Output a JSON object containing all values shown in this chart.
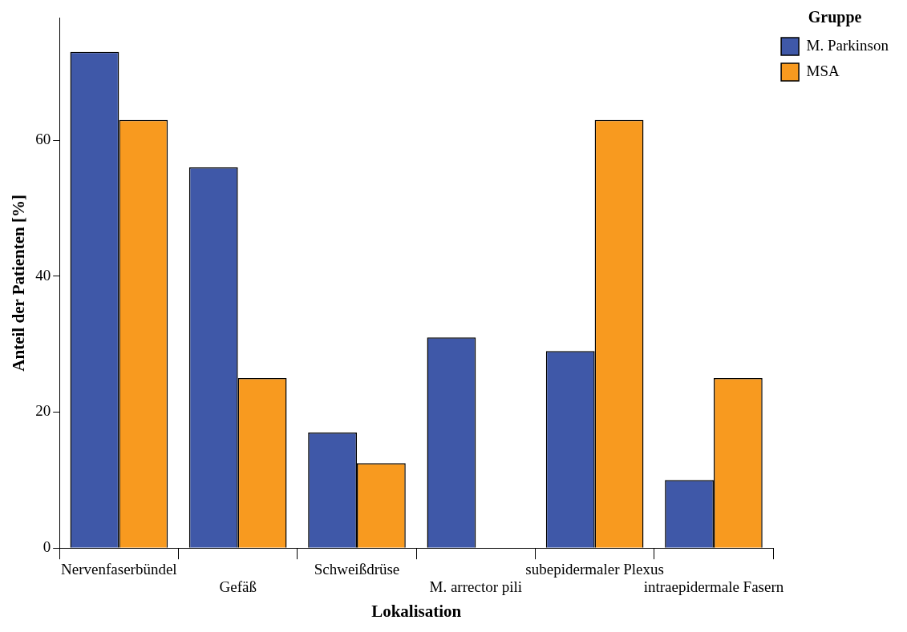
{
  "chart_data": {
    "type": "bar",
    "xlabel": "Lokalisation",
    "ylabel": "Anteil der Patienten [%]",
    "legend_title": "Gruppe",
    "categories": [
      "Nervenfaserbündel",
      "Gefäß",
      "Schweißdrüse",
      "M. arrector pili",
      "subepidermaler Plexus",
      "intraepidermale Fasern"
    ],
    "series": [
      {
        "name": "M. Parkinson",
        "color": "#3f58a8",
        "values": [
          73,
          56,
          17,
          31,
          29,
          10
        ]
      },
      {
        "name": "MSA",
        "color": "#f89a1f",
        "values": [
          63,
          25,
          12.5,
          0,
          63,
          25
        ]
      }
    ],
    "ylim": [
      0,
      78
    ],
    "yticks": [
      0,
      20,
      40,
      60
    ],
    "grid": false,
    "legend": "top right"
  }
}
